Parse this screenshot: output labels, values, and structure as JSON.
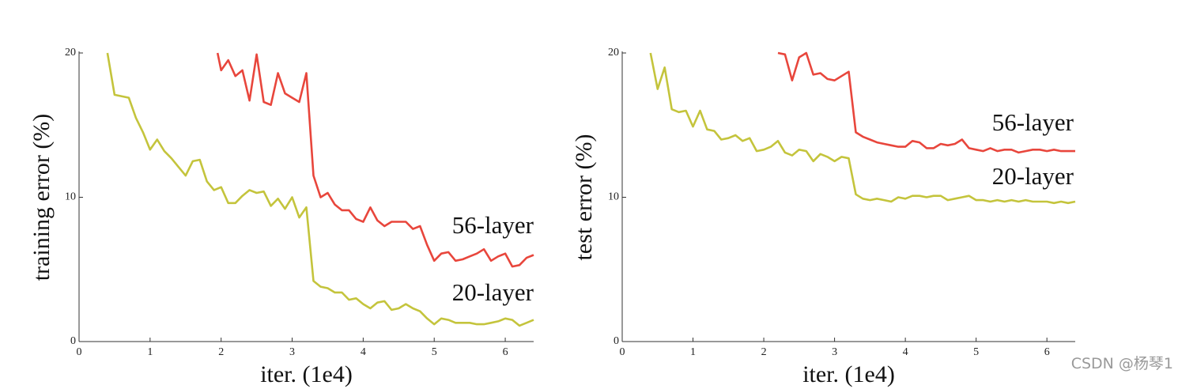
{
  "chart_data": [
    {
      "type": "line",
      "ylabel": "training error (%)",
      "xlabel": "iter. (1e4)",
      "xlim": [
        0,
        6.4
      ],
      "ylim": [
        0,
        20
      ],
      "xticks": [
        0,
        1,
        2,
        3,
        4,
        5,
        6
      ],
      "yticks": [
        0,
        10,
        20
      ],
      "series": [
        {
          "name": "56-layer",
          "color": "#e8463c",
          "x": [
            1.95,
            2.0,
            2.1,
            2.2,
            2.3,
            2.4,
            2.5,
            2.6,
            2.7,
            2.8,
            2.9,
            3.0,
            3.1,
            3.2,
            3.3,
            3.4,
            3.5,
            3.6,
            3.7,
            3.8,
            3.9,
            4.0,
            4.1,
            4.2,
            4.3,
            4.4,
            4.5,
            4.6,
            4.7,
            4.8,
            4.9,
            5.0,
            5.1,
            5.2,
            5.3,
            5.4,
            5.5,
            5.6,
            5.7,
            5.8,
            5.9,
            6.0,
            6.1,
            6.2,
            6.3,
            6.4
          ],
          "values": [
            20,
            18.8,
            19.5,
            18.4,
            18.8,
            16.7,
            19.9,
            16.6,
            16.4,
            18.6,
            17.2,
            16.9,
            16.6,
            18.6,
            11.5,
            10.0,
            10.3,
            9.5,
            9.1,
            9.1,
            8.5,
            8.3,
            9.3,
            8.4,
            8.0,
            8.3,
            8.3,
            8.3,
            7.8,
            8.0,
            6.7,
            5.6,
            6.1,
            6.2,
            5.6,
            5.7,
            5.9,
            6.1,
            6.4,
            5.6,
            5.9,
            6.1,
            5.2,
            5.3,
            5.8,
            6.0
          ]
        },
        {
          "name": "20-layer",
          "color": "#c4c43c",
          "x": [
            0.4,
            0.5,
            0.7,
            0.8,
            0.9,
            1.0,
            1.1,
            1.2,
            1.3,
            1.4,
            1.5,
            1.6,
            1.7,
            1.8,
            1.9,
            2.0,
            2.1,
            2.2,
            2.3,
            2.4,
            2.5,
            2.6,
            2.7,
            2.8,
            2.9,
            3.0,
            3.1,
            3.2,
            3.3,
            3.4,
            3.5,
            3.6,
            3.7,
            3.8,
            3.9,
            4.0,
            4.1,
            4.2,
            4.3,
            4.4,
            4.5,
            4.6,
            4.7,
            4.8,
            4.9,
            5.0,
            5.1,
            5.2,
            5.3,
            5.4,
            5.5,
            5.6,
            5.7,
            5.8,
            5.9,
            6.0,
            6.1,
            6.2,
            6.3,
            6.4
          ],
          "values": [
            20,
            17.1,
            16.9,
            15.5,
            14.5,
            13.3,
            14.0,
            13.2,
            12.7,
            12.1,
            11.5,
            12.5,
            12.6,
            11.1,
            10.5,
            10.7,
            9.6,
            9.6,
            10.1,
            10.5,
            10.3,
            10.4,
            9.4,
            9.9,
            9.2,
            10.0,
            8.6,
            9.3,
            4.2,
            3.8,
            3.7,
            3.4,
            3.4,
            2.9,
            3.0,
            2.6,
            2.3,
            2.7,
            2.8,
            2.2,
            2.3,
            2.6,
            2.3,
            2.1,
            1.6,
            1.2,
            1.6,
            1.5,
            1.3,
            1.3,
            1.3,
            1.2,
            1.2,
            1.3,
            1.4,
            1.6,
            1.5,
            1.1,
            1.3,
            1.5
          ]
        }
      ]
    },
    {
      "type": "line",
      "ylabel": "test error (%)",
      "xlabel": "iter. (1e4)",
      "xlim": [
        0,
        6.4
      ],
      "ylim": [
        0,
        20
      ],
      "xticks": [
        0,
        1,
        2,
        3,
        4,
        5,
        6
      ],
      "yticks": [
        0,
        10,
        20
      ],
      "series": [
        {
          "name": "56-layer",
          "color": "#e8463c",
          "x": [
            2.2,
            2.3,
            2.4,
            2.5,
            2.6,
            2.7,
            2.8,
            2.9,
            3.0,
            3.1,
            3.2,
            3.3,
            3.4,
            3.5,
            3.6,
            3.7,
            3.8,
            3.9,
            4.0,
            4.1,
            4.2,
            4.3,
            4.4,
            4.5,
            4.6,
            4.7,
            4.8,
            4.9,
            5.0,
            5.1,
            5.2,
            5.3,
            5.4,
            5.5,
            5.6,
            5.7,
            5.8,
            5.9,
            6.0,
            6.1,
            6.2,
            6.3,
            6.4
          ],
          "values": [
            20,
            19.9,
            18.1,
            19.7,
            20,
            18.5,
            18.6,
            18.2,
            18.1,
            18.4,
            18.7,
            14.5,
            14.2,
            14.0,
            13.8,
            13.7,
            13.6,
            13.5,
            13.5,
            13.9,
            13.8,
            13.4,
            13.4,
            13.7,
            13.6,
            13.7,
            14.0,
            13.4,
            13.3,
            13.2,
            13.4,
            13.2,
            13.3,
            13.3,
            13.1,
            13.2,
            13.3,
            13.3,
            13.2,
            13.3,
            13.2,
            13.2,
            13.2
          ]
        },
        {
          "name": "20-layer",
          "color": "#c4c43c",
          "x": [
            0.4,
            0.5,
            0.6,
            0.7,
            0.8,
            0.9,
            1.0,
            1.1,
            1.2,
            1.3,
            1.4,
            1.5,
            1.6,
            1.7,
            1.8,
            1.9,
            2.0,
            2.1,
            2.2,
            2.3,
            2.4,
            2.5,
            2.6,
            2.7,
            2.8,
            2.9,
            3.0,
            3.1,
            3.2,
            3.3,
            3.4,
            3.5,
            3.6,
            3.7,
            3.8,
            3.9,
            4.0,
            4.1,
            4.2,
            4.3,
            4.4,
            4.5,
            4.6,
            4.7,
            4.8,
            4.9,
            5.0,
            5.1,
            5.2,
            5.3,
            5.4,
            5.5,
            5.6,
            5.7,
            5.8,
            5.9,
            6.0,
            6.1,
            6.2,
            6.3,
            6.4
          ],
          "values": [
            20,
            17.5,
            19.0,
            16.1,
            15.9,
            16.0,
            14.9,
            16.0,
            14.7,
            14.6,
            14.0,
            14.1,
            14.3,
            13.9,
            14.1,
            13.2,
            13.3,
            13.5,
            13.9,
            13.1,
            12.9,
            13.3,
            13.2,
            12.5,
            13.0,
            12.8,
            12.5,
            12.8,
            12.7,
            10.2,
            9.9,
            9.8,
            9.9,
            9.8,
            9.7,
            10.0,
            9.9,
            10.1,
            10.1,
            10.0,
            10.1,
            10.1,
            9.8,
            9.9,
            10.0,
            10.1,
            9.8,
            9.8,
            9.7,
            9.8,
            9.7,
            9.8,
            9.7,
            9.8,
            9.7,
            9.7,
            9.7,
            9.6,
            9.7,
            9.6,
            9.7
          ]
        }
      ]
    }
  ],
  "watermark": "CSDN @杨琴1"
}
